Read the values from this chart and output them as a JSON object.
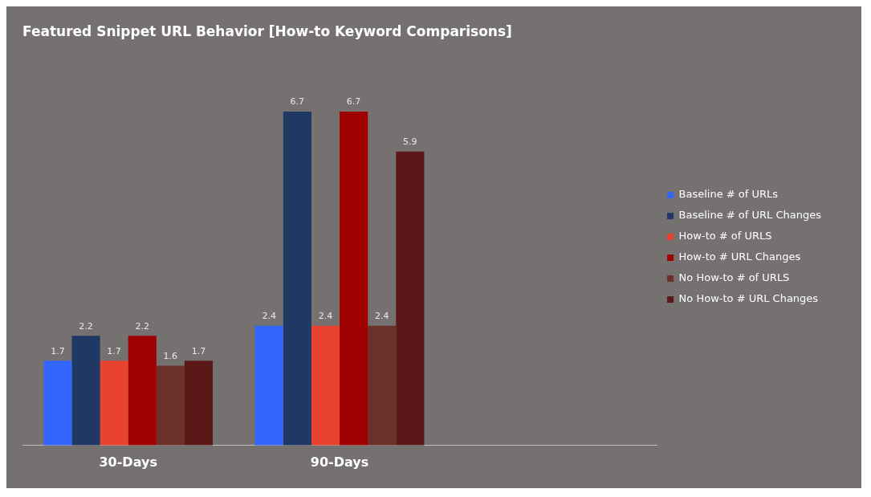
{
  "chart_data": {
    "type": "bar",
    "title": "Featured Snippet URL Behavior [How-to Keyword Comparisons]",
    "categories": [
      "30-Days",
      "90-Days",
      null
    ],
    "series": [
      {
        "name": "Baseline # of URLs",
        "color": "#3366ff",
        "values": [
          1.7,
          2.4,
          null
        ]
      },
      {
        "name": "Baseline # of URL Changes",
        "color": "#1f3864",
        "values": [
          2.2,
          6.7,
          null
        ]
      },
      {
        "name": "How-to # of URLS",
        "color": "#e8432f",
        "values": [
          1.7,
          2.4,
          null
        ]
      },
      {
        "name": "How-to # URL Changes",
        "color": "#a00000",
        "values": [
          2.2,
          6.7,
          null
        ]
      },
      {
        "name": "No How-to # of URLS",
        "color": "#6b3129",
        "values": [
          1.6,
          2.4,
          null
        ]
      },
      {
        "name": "No How-to # URL Changes",
        "color": "#5a1818",
        "values": [
          1.7,
          5.9,
          null
        ]
      }
    ],
    "data_labels": true,
    "legend": "right",
    "grid": false
  }
}
